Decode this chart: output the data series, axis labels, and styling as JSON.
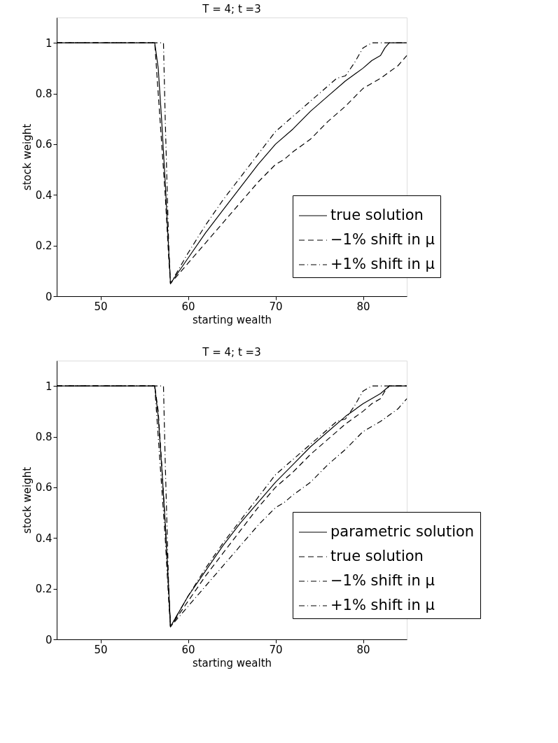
{
  "chart_data": [
    {
      "type": "line",
      "title": "T = 4; t =3",
      "xlabel": "starting wealth",
      "ylabel": "stock weight",
      "xlim": [
        45,
        85
      ],
      "xticks": [
        50,
        60,
        70,
        80
      ],
      "ylim": [
        0,
        1.1
      ],
      "yticks": [
        0,
        0.2,
        0.4,
        0.6,
        0.8,
        1
      ],
      "grid": false,
      "legend": "bottom right",
      "marker": "none",
      "series": [
        {
          "name": "true solution",
          "color": "#000000",
          "line_style": "solid",
          "x": [
            45,
            56.2,
            56.6,
            57,
            57.4,
            57.8,
            58,
            60,
            62,
            64,
            66,
            68,
            70,
            72,
            74,
            76,
            78,
            80,
            81,
            82,
            82.5,
            83,
            85
          ],
          "values": [
            1,
            1,
            0.9,
            0.69,
            0.45,
            0.18,
            0.05,
            0.15,
            0.25,
            0.34,
            0.43,
            0.52,
            0.6,
            0.66,
            0.73,
            0.79,
            0.85,
            0.9,
            0.93,
            0.95,
            0.98,
            1,
            1
          ]
        },
        {
          "name": "−1% shift in μ",
          "color": "#000000",
          "line_style": "dashed",
          "x": [
            45,
            56.2,
            56.6,
            57,
            57.4,
            57.8,
            58,
            60,
            62,
            64,
            66,
            68,
            70,
            71,
            72,
            74,
            76,
            78,
            80,
            82,
            84,
            85
          ],
          "values": [
            1,
            1,
            0.8,
            0.6,
            0.4,
            0.15,
            0.05,
            0.13,
            0.21,
            0.29,
            0.37,
            0.45,
            0.52,
            0.54,
            0.57,
            0.62,
            0.69,
            0.75,
            0.82,
            0.86,
            0.91,
            0.95
          ]
        },
        {
          "name": "+1% shift in μ",
          "color": "#000000",
          "line_style": "dashdot",
          "x": [
            45,
            57.2,
            57.4,
            57.6,
            57.8,
            58,
            60,
            62,
            64,
            66,
            68,
            70,
            72,
            74,
            76,
            77,
            78,
            79,
            80,
            81,
            85
          ],
          "values": [
            1,
            1,
            0.7,
            0.45,
            0.2,
            0.05,
            0.17,
            0.28,
            0.38,
            0.47,
            0.56,
            0.65,
            0.71,
            0.77,
            0.83,
            0.86,
            0.87,
            0.92,
            0.98,
            1,
            1
          ]
        }
      ]
    },
    {
      "type": "line",
      "title": "T = 4; t =3",
      "xlabel": "starting wealth",
      "ylabel": "stock weight",
      "xlim": [
        45,
        85
      ],
      "xticks": [
        50,
        60,
        70,
        80
      ],
      "ylim": [
        0,
        1.1
      ],
      "yticks": [
        0,
        0.2,
        0.4,
        0.6,
        0.8,
        1
      ],
      "grid": false,
      "legend": "bottom right",
      "marker": "none",
      "series": [
        {
          "name": "parametric solution",
          "color": "#000000",
          "line_style": "solid",
          "x": [
            45,
            56.2,
            56.6,
            57,
            57.4,
            57.8,
            58,
            60,
            62,
            64,
            66,
            68,
            70,
            72,
            74,
            76,
            78,
            80,
            82,
            83,
            85
          ],
          "values": [
            1,
            1,
            0.88,
            0.68,
            0.46,
            0.2,
            0.05,
            0.17,
            0.27,
            0.37,
            0.46,
            0.54,
            0.62,
            0.69,
            0.76,
            0.82,
            0.88,
            0.93,
            0.97,
            1,
            1
          ]
        },
        {
          "name": "true solution",
          "color": "#000000",
          "line_style": "dashed",
          "x": [
            45,
            56.2,
            56.6,
            57,
            57.4,
            57.8,
            58,
            60,
            62,
            64,
            66,
            68,
            70,
            72,
            74,
            76,
            78,
            80,
            81,
            82,
            82.5,
            83,
            85
          ],
          "values": [
            1,
            1,
            0.9,
            0.69,
            0.45,
            0.18,
            0.05,
            0.15,
            0.25,
            0.34,
            0.43,
            0.52,
            0.6,
            0.66,
            0.73,
            0.79,
            0.85,
            0.9,
            0.93,
            0.95,
            0.98,
            1,
            1
          ]
        },
        {
          "name": "−1% shift in μ",
          "color": "#000000",
          "line_style": "dashdot",
          "x": [
            45,
            56.2,
            56.6,
            57,
            57.4,
            57.8,
            58,
            60,
            62,
            64,
            66,
            68,
            70,
            71,
            72,
            74,
            76,
            78,
            80,
            82,
            84,
            85
          ],
          "values": [
            1,
            1,
            0.8,
            0.6,
            0.4,
            0.15,
            0.05,
            0.13,
            0.21,
            0.29,
            0.37,
            0.45,
            0.52,
            0.54,
            0.57,
            0.62,
            0.69,
            0.75,
            0.82,
            0.86,
            0.91,
            0.95
          ]
        },
        {
          "name": "+1% shift in μ",
          "color": "#000000",
          "line_style": "dashdot",
          "x": [
            45,
            57.2,
            57.4,
            57.6,
            57.8,
            58,
            60,
            62,
            64,
            66,
            68,
            70,
            72,
            74,
            76,
            77,
            78,
            79,
            80,
            81,
            85
          ],
          "values": [
            1,
            1,
            0.7,
            0.45,
            0.2,
            0.05,
            0.17,
            0.28,
            0.38,
            0.47,
            0.56,
            0.65,
            0.71,
            0.77,
            0.83,
            0.86,
            0.87,
            0.92,
            0.98,
            1,
            1
          ]
        }
      ]
    }
  ]
}
